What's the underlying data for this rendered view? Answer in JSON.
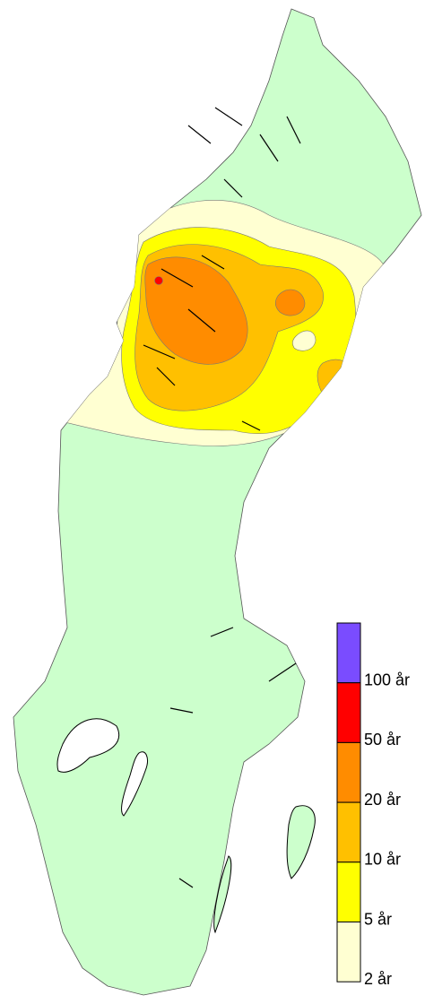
{
  "legend": {
    "labels": [
      "100 år",
      "50 år",
      "20 år",
      "10 år",
      "5 år",
      "2 år"
    ],
    "colors": [
      "#7a4cff",
      "#ff0000",
      "#ff8c00",
      "#ffc000",
      "#ffff00",
      "#ffffd2"
    ],
    "land_color": "#ccffcc"
  }
}
